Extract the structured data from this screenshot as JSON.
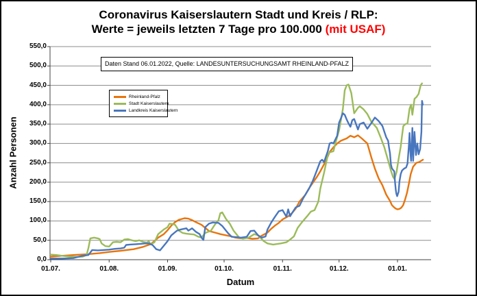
{
  "title": {
    "line1": "Coronavirus Kaiserslautern Stadt und Kreis / RLP:",
    "line2_black": "Werte = jeweils letzten 7 Tage pro 100.000 ",
    "line2_red": "(mit USAF)"
  },
  "annotation": "Daten Stand 06.01.2022, Quelle: LANDESUNTERSUCHUNGSAMT RHEINLAND-PFALZ",
  "colors": {
    "grid": "#8c8c8c",
    "axis": "#404040",
    "title_red": "#ff0000"
  },
  "chart_data": {
    "type": "line",
    "xlabel": "Datum",
    "ylabel": "Anzahl Personen",
    "ylim": [
      0,
      550
    ],
    "ytick_step": 50,
    "ytick_labels": [
      "0,0",
      "50,0",
      "100,0",
      "150,0",
      "200,0",
      "250,0",
      "300,0",
      "350,0",
      "400,0",
      "450,0",
      "500,0",
      "550,0"
    ],
    "grid": "horizontal",
    "legend_position": "upper-left-inside",
    "x_unit": "days since 01.07.2021",
    "x_ticks": {
      "days": [
        0,
        31,
        62,
        92,
        123,
        153,
        184
      ],
      "labels": [
        "01.07.",
        "01.08.",
        "01.09.",
        "01.10.",
        "01.11.",
        "01.12.",
        "01.01."
      ]
    },
    "series": [
      {
        "name": "Rheinland-Pfalz",
        "color": "#E8740C",
        "points": [
          [
            0,
            8
          ],
          [
            6,
            10
          ],
          [
            12,
            12
          ],
          [
            19,
            14
          ],
          [
            26,
            17
          ],
          [
            31,
            20
          ],
          [
            37,
            23
          ],
          [
            44,
            27
          ],
          [
            49,
            33
          ],
          [
            53,
            40
          ],
          [
            55,
            48
          ],
          [
            57,
            57
          ],
          [
            60,
            66
          ],
          [
            62,
            76
          ],
          [
            64,
            88
          ],
          [
            66,
            97
          ],
          [
            68,
            103
          ],
          [
            71,
            107
          ],
          [
            73,
            106
          ],
          [
            75,
            102
          ],
          [
            77,
            97
          ],
          [
            80,
            90
          ],
          [
            82,
            82
          ],
          [
            84,
            74
          ],
          [
            87,
            70
          ],
          [
            90,
            66
          ],
          [
            93,
            63
          ],
          [
            96,
            60
          ],
          [
            98,
            57
          ],
          [
            101,
            55
          ],
          [
            104,
            56
          ],
          [
            107,
            54
          ],
          [
            110,
            55
          ],
          [
            112,
            62
          ],
          [
            115,
            70
          ],
          [
            117,
            80
          ],
          [
            119,
            88
          ],
          [
            121,
            95
          ],
          [
            123,
            104
          ],
          [
            126,
            112
          ],
          [
            128,
            120
          ],
          [
            130,
            132
          ],
          [
            132,
            150
          ],
          [
            135,
            167
          ],
          [
            137,
            184
          ],
          [
            139,
            198
          ],
          [
            141,
            212
          ],
          [
            143,
            228
          ],
          [
            146,
            255
          ],
          [
            148,
            278
          ],
          [
            150,
            290
          ],
          [
            152,
            300
          ],
          [
            154,
            307
          ],
          [
            157,
            313
          ],
          [
            159,
            320
          ],
          [
            161,
            316
          ],
          [
            163,
            321
          ],
          [
            165,
            313
          ],
          [
            168,
            300
          ],
          [
            170,
            266
          ],
          [
            172,
            235
          ],
          [
            174,
            210
          ],
          [
            176,
            192
          ],
          [
            178,
            168
          ],
          [
            180,
            152
          ],
          [
            181,
            141
          ],
          [
            182,
            136
          ],
          [
            183,
            132
          ],
          [
            184,
            130
          ],
          [
            185,
            131
          ],
          [
            186,
            134
          ],
          [
            187,
            141
          ],
          [
            188,
            155
          ],
          [
            189,
            172
          ],
          [
            190,
            195
          ],
          [
            191,
            221
          ],
          [
            192.3,
            240
          ],
          [
            194,
            250
          ],
          [
            195.5,
            252
          ],
          [
            197.5,
            258
          ]
        ]
      },
      {
        "name": "Stadt Kaiserslautern",
        "color": "#9BBB59",
        "points": [
          [
            0,
            13
          ],
          [
            3,
            12
          ],
          [
            6,
            10
          ],
          [
            10,
            8
          ],
          [
            14,
            7
          ],
          [
            17,
            8
          ],
          [
            19,
            12
          ],
          [
            20,
            30
          ],
          [
            21,
            55
          ],
          [
            23,
            57
          ],
          [
            25,
            55
          ],
          [
            26,
            53
          ],
          [
            27,
            42
          ],
          [
            29,
            35
          ],
          [
            31,
            34
          ],
          [
            33,
            45
          ],
          [
            35,
            46
          ],
          [
            37,
            45
          ],
          [
            39,
            52
          ],
          [
            41,
            53
          ],
          [
            43,
            50
          ],
          [
            45,
            48
          ],
          [
            47,
            50
          ],
          [
            49,
            46
          ],
          [
            51,
            44
          ],
          [
            52,
            48
          ],
          [
            53,
            39
          ],
          [
            55,
            45
          ],
          [
            57,
            66
          ],
          [
            60,
            78
          ],
          [
            62,
            84
          ],
          [
            63,
            93
          ],
          [
            65,
            92
          ],
          [
            66,
            90
          ],
          [
            68,
            75
          ],
          [
            70,
            69
          ],
          [
            72,
            67
          ],
          [
            74,
            66
          ],
          [
            76,
            65
          ],
          [
            78,
            60
          ],
          [
            80,
            57
          ],
          [
            82,
            69
          ],
          [
            85,
            75
          ],
          [
            87,
            90
          ],
          [
            89,
            102
          ],
          [
            90,
            120
          ],
          [
            91,
            122
          ],
          [
            93,
            105
          ],
          [
            95,
            93
          ],
          [
            97,
            75
          ],
          [
            100,
            57
          ],
          [
            102,
            54
          ],
          [
            105,
            57
          ],
          [
            108,
            66
          ],
          [
            110,
            63
          ],
          [
            113,
            48
          ],
          [
            115,
            42
          ],
          [
            118,
            39
          ],
          [
            122,
            42
          ],
          [
            125,
            45
          ],
          [
            127,
            52
          ],
          [
            129,
            60
          ],
          [
            131,
            82
          ],
          [
            133,
            95
          ],
          [
            136,
            112
          ],
          [
            138,
            124
          ],
          [
            140,
            128
          ],
          [
            142,
            150
          ],
          [
            143,
            183
          ],
          [
            145,
            224
          ],
          [
            147,
            270
          ],
          [
            148,
            277
          ],
          [
            150,
            280
          ],
          [
            151,
            300
          ],
          [
            153,
            334
          ],
          [
            155,
            389
          ],
          [
            156,
            437
          ],
          [
            157,
            450
          ],
          [
            158,
            452
          ],
          [
            159.5,
            430
          ],
          [
            161,
            378
          ],
          [
            163,
            392
          ],
          [
            164,
            396
          ],
          [
            166,
            388
          ],
          [
            168,
            376
          ],
          [
            170,
            357
          ],
          [
            173,
            340
          ],
          [
            175,
            316
          ],
          [
            177,
            290
          ],
          [
            179,
            256
          ],
          [
            180.5,
            230
          ],
          [
            181.6,
            214
          ],
          [
            182.4,
            208
          ],
          [
            183.5,
            226
          ],
          [
            184.6,
            260
          ],
          [
            185.7,
            292
          ],
          [
            186.4,
            320
          ],
          [
            187.1,
            345
          ],
          [
            188.2,
            350
          ],
          [
            189.3,
            352
          ],
          [
            190.4,
            390
          ],
          [
            191.2,
            400
          ],
          [
            191.9,
            374
          ],
          [
            193,
            415
          ],
          [
            194.1,
            420
          ],
          [
            195.2,
            428
          ],
          [
            196.3,
            450
          ],
          [
            197,
            455
          ]
        ]
      },
      {
        "name": "Landkreis Kaiserslautern",
        "color": "#4876BE",
        "points": [
          [
            0,
            3
          ],
          [
            6,
            3
          ],
          [
            12,
            4
          ],
          [
            15,
            8
          ],
          [
            17,
            10
          ],
          [
            20,
            12
          ],
          [
            22,
            25
          ],
          [
            25,
            24
          ],
          [
            28,
            25
          ],
          [
            31,
            26
          ],
          [
            34,
            28
          ],
          [
            37,
            29
          ],
          [
            39,
            31
          ],
          [
            40,
            38
          ],
          [
            42,
            39
          ],
          [
            45,
            40
          ],
          [
            48,
            41
          ],
          [
            50,
            42
          ],
          [
            52,
            42
          ],
          [
            54,
            38
          ],
          [
            56,
            27
          ],
          [
            58,
            24
          ],
          [
            61,
            42
          ],
          [
            62,
            48
          ],
          [
            64,
            63
          ],
          [
            67,
            75
          ],
          [
            69,
            78
          ],
          [
            72,
            81
          ],
          [
            73,
            75
          ],
          [
            75,
            81
          ],
          [
            77,
            72
          ],
          [
            79,
            66
          ],
          [
            80,
            57
          ],
          [
            81,
            51
          ],
          [
            82,
            84
          ],
          [
            84,
            93
          ],
          [
            86,
            96
          ],
          [
            89,
            95
          ],
          [
            91,
            87
          ],
          [
            94,
            69
          ],
          [
            96,
            59
          ],
          [
            99,
            58
          ],
          [
            101,
            57
          ],
          [
            104,
            59
          ],
          [
            106,
            74
          ],
          [
            108,
            75
          ],
          [
            110,
            63
          ],
          [
            112,
            57
          ],
          [
            114,
            60
          ],
          [
            115,
            78
          ],
          [
            117,
            96
          ],
          [
            119,
            111
          ],
          [
            121,
            125
          ],
          [
            123,
            128
          ],
          [
            125,
            111
          ],
          [
            126,
            130
          ],
          [
            127,
            112
          ],
          [
            128,
            120
          ],
          [
            130,
            135
          ],
          [
            132,
            139
          ],
          [
            134,
            159
          ],
          [
            137,
            183
          ],
          [
            139,
            203
          ],
          [
            141,
            228
          ],
          [
            143,
            254
          ],
          [
            144,
            258
          ],
          [
            145,
            252
          ],
          [
            147,
            280
          ],
          [
            148,
            300
          ],
          [
            149,
            302
          ],
          [
            150,
            300
          ],
          [
            152,
            320
          ],
          [
            153,
            354
          ],
          [
            154,
            365
          ],
          [
            155,
            378
          ],
          [
            156,
            374
          ],
          [
            157,
            362
          ],
          [
            158,
            352
          ],
          [
            159,
            343
          ],
          [
            160,
            360
          ],
          [
            161,
            363
          ],
          [
            163,
            336
          ],
          [
            164,
            350
          ],
          [
            166,
            354
          ],
          [
            168,
            338
          ],
          [
            170,
            352
          ],
          [
            172,
            367
          ],
          [
            174,
            358
          ],
          [
            176,
            345
          ],
          [
            178,
            316
          ],
          [
            179,
            307
          ],
          [
            179.5,
            290
          ],
          [
            180,
            275
          ],
          [
            180.5,
            246
          ],
          [
            181,
            236
          ],
          [
            181.6,
            232
          ],
          [
            182.3,
            228
          ],
          [
            182.7,
            200
          ],
          [
            183.1,
            180
          ],
          [
            183.4,
            170
          ],
          [
            183.8,
            164
          ],
          [
            184.6,
            175
          ],
          [
            185,
            201
          ],
          [
            185.7,
            221
          ],
          [
            186.4,
            230
          ],
          [
            187.5,
            235
          ],
          [
            188.6,
            238
          ],
          [
            189.3,
            248
          ],
          [
            190.1,
            300
          ],
          [
            190.4,
            327
          ],
          [
            190.8,
            280
          ],
          [
            191.2,
            255
          ],
          [
            191.9,
            340
          ],
          [
            192.3,
            255
          ],
          [
            193,
            330
          ],
          [
            193.8,
            270
          ],
          [
            194.5,
            300
          ],
          [
            195.2,
            272
          ],
          [
            196,
            285
          ],
          [
            196.7,
            330
          ],
          [
            197,
            410
          ],
          [
            197.4,
            400
          ]
        ]
      }
    ]
  }
}
